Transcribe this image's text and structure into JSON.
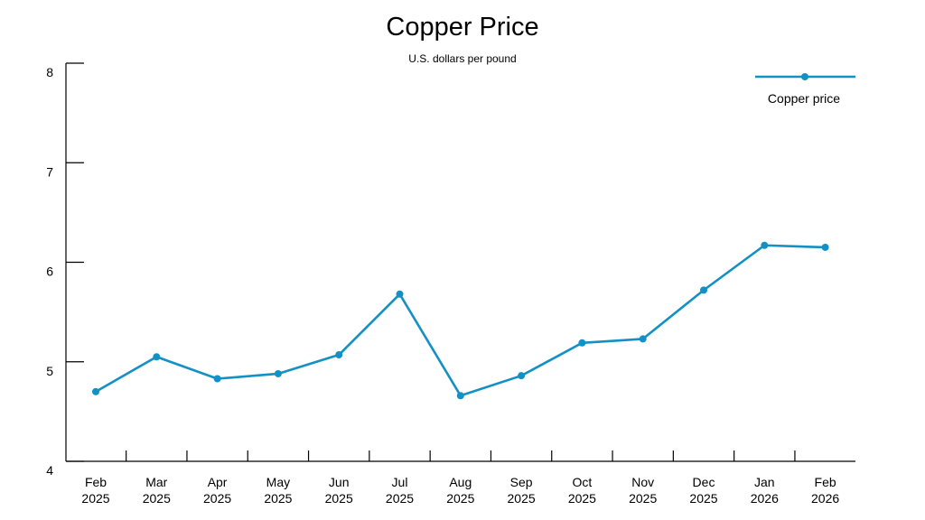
{
  "chart_data": {
    "type": "line",
    "title": "Copper Price",
    "subtitle": "U.S. dollars per pound",
    "xlabel": "",
    "ylabel": "",
    "ylim": [
      4,
      8
    ],
    "y_ticks": [
      "4",
      "5",
      "6",
      "7",
      "8"
    ],
    "grid": false,
    "legend_position": "top-right",
    "categories": [
      {
        "month": "Feb",
        "year": "2025"
      },
      {
        "month": "Mar",
        "year": "2025"
      },
      {
        "month": "Apr",
        "year": "2025"
      },
      {
        "month": "May",
        "year": "2025"
      },
      {
        "month": "Jun",
        "year": "2025"
      },
      {
        "month": "Jul",
        "year": "2025"
      },
      {
        "month": "Aug",
        "year": "2025"
      },
      {
        "month": "Sep",
        "year": "2025"
      },
      {
        "month": "Oct",
        "year": "2025"
      },
      {
        "month": "Nov",
        "year": "2025"
      },
      {
        "month": "Dec",
        "year": "2025"
      },
      {
        "month": "Jan",
        "year": "2026"
      },
      {
        "month": "Feb",
        "year": "2026"
      }
    ],
    "series": [
      {
        "name": "Copper price",
        "color": "#1390c4",
        "values": [
          4.7,
          5.05,
          4.83,
          4.88,
          5.07,
          5.68,
          4.66,
          4.86,
          5.19,
          5.23,
          5.72,
          6.17,
          6.15
        ]
      }
    ]
  }
}
